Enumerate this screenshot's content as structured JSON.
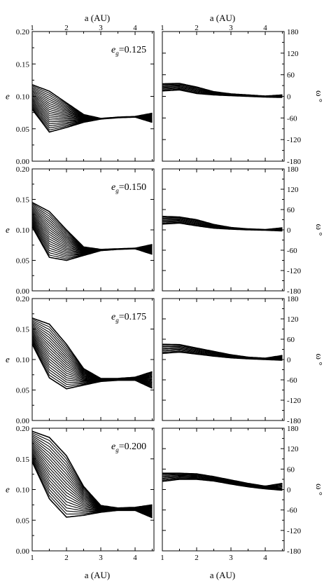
{
  "figure": {
    "top_axis_label": "a (AU)",
    "bottom_axis_label": "a (AU)",
    "left_ylabel": "e",
    "right_ylabel": "ω °",
    "x_ticks": [
      "1",
      "2",
      "3",
      "4"
    ],
    "e_ticks": [
      "0.00",
      "0.05",
      "0.10",
      "0.15",
      "0.20"
    ],
    "omega_ticks": [
      "180",
      "120",
      "60",
      "0",
      "-60",
      "-120",
      "-180"
    ]
  },
  "chart_data": [
    {
      "type": "line",
      "panel": "e vs a",
      "annotation": "eg=0.125",
      "annotation_main": "e",
      "annotation_sub": "g",
      "annotation_value": "=0.125",
      "xlabel": "a (AU)",
      "ylabel": "e",
      "xlim": [
        1,
        4.55
      ],
      "ylim": [
        0,
        0.2
      ],
      "series": [
        {
          "x": [
            1.0,
            1.5,
            2.0,
            2.5,
            3.0,
            3.5,
            4.0,
            4.5
          ],
          "values": [
            0.08,
            0.045,
            0.052,
            0.06,
            0.065,
            0.067,
            0.068,
            0.06
          ]
        },
        {
          "x": [
            1.0,
            1.5,
            2.0,
            2.5,
            3.0,
            3.5,
            4.0,
            4.5
          ],
          "values": [
            0.118,
            0.108,
            0.09,
            0.072,
            0.066,
            0.068,
            0.069,
            0.074
          ]
        }
      ]
    },
    {
      "type": "line",
      "panel": "omega vs a",
      "xlabel": "a (AU)",
      "ylabel": "ω °",
      "xlim": [
        1,
        4.55
      ],
      "ylim": [
        -180,
        180
      ],
      "series": [
        {
          "x": [
            1.0,
            1.5,
            2.0,
            2.5,
            3.0,
            3.5,
            4.0,
            4.5
          ],
          "values": [
            15,
            18,
            8,
            4,
            2,
            0,
            -2,
            -3
          ]
        },
        {
          "x": [
            1.0,
            1.5,
            2.0,
            2.5,
            3.0,
            3.5,
            4.0,
            4.5
          ],
          "values": [
            35,
            36,
            26,
            13,
            7,
            4,
            1,
            4
          ]
        }
      ]
    },
    {
      "type": "line",
      "panel": "e vs a",
      "annotation": "eg=0.150",
      "annotation_main": "e",
      "annotation_sub": "g",
      "annotation_value": "=0.150",
      "xlabel": "a (AU)",
      "ylabel": "e",
      "xlim": [
        1,
        4.55
      ],
      "ylim": [
        0,
        0.2
      ],
      "series": [
        {
          "x": [
            1.0,
            1.5,
            2.0,
            2.5,
            3.0,
            3.5,
            4.0,
            4.5
          ],
          "values": [
            0.105,
            0.055,
            0.05,
            0.058,
            0.066,
            0.068,
            0.069,
            0.06
          ]
        },
        {
          "x": [
            1.0,
            1.5,
            2.0,
            2.5,
            3.0,
            3.5,
            4.0,
            4.5
          ],
          "values": [
            0.145,
            0.13,
            0.1,
            0.072,
            0.068,
            0.069,
            0.07,
            0.076
          ]
        }
      ]
    },
    {
      "type": "line",
      "panel": "omega vs a",
      "xlabel": "a (AU)",
      "ylabel": "ω °",
      "xlim": [
        1,
        4.55
      ],
      "ylim": [
        -180,
        180
      ],
      "series": [
        {
          "x": [
            1.0,
            1.5,
            2.0,
            2.5,
            3.0,
            3.5,
            4.0,
            4.5
          ],
          "values": [
            17,
            20,
            12,
            5,
            2,
            0,
            -1,
            -3
          ]
        },
        {
          "x": [
            1.0,
            1.5,
            2.0,
            2.5,
            3.0,
            3.5,
            4.0,
            4.5
          ],
          "values": [
            40,
            38,
            30,
            16,
            7,
            3,
            1,
            6
          ]
        }
      ]
    },
    {
      "type": "line",
      "panel": "e vs a",
      "annotation": "eg=0.175",
      "annotation_main": "e",
      "annotation_sub": "g",
      "annotation_value": "=0.175",
      "xlabel": "a (AU)",
      "ylabel": "e",
      "xlim": [
        1,
        4.55
      ],
      "ylim": [
        0,
        0.2
      ],
      "series": [
        {
          "x": [
            1.0,
            1.5,
            2.0,
            2.5,
            3.0,
            3.5,
            4.0,
            4.5
          ],
          "values": [
            0.125,
            0.07,
            0.052,
            0.058,
            0.064,
            0.066,
            0.066,
            0.053
          ]
        },
        {
          "x": [
            1.0,
            1.5,
            2.0,
            2.5,
            3.0,
            3.5,
            4.0,
            4.5
          ],
          "values": [
            0.168,
            0.158,
            0.125,
            0.085,
            0.069,
            0.069,
            0.071,
            0.08
          ]
        }
      ]
    },
    {
      "type": "line",
      "panel": "omega vs a",
      "xlabel": "a (AU)",
      "ylabel": "ω °",
      "xlim": [
        1,
        4.55
      ],
      "ylim": [
        -180,
        180
      ],
      "series": [
        {
          "x": [
            1.0,
            1.5,
            2.0,
            2.5,
            3.0,
            3.5,
            4.0,
            4.5
          ],
          "values": [
            18,
            22,
            16,
            10,
            5,
            2,
            0,
            -2
          ]
        },
        {
          "x": [
            1.0,
            1.5,
            2.0,
            2.5,
            3.0,
            3.5,
            4.0,
            4.5
          ],
          "values": [
            45,
            44,
            34,
            24,
            14,
            7,
            4,
            12
          ]
        }
      ]
    },
    {
      "type": "line",
      "panel": "e vs a",
      "annotation": "eg=0.200",
      "annotation_main": "e",
      "annotation_sub": "g",
      "annotation_value": "=0.200",
      "xlabel": "a (AU)",
      "ylabel": "e",
      "xlim": [
        1,
        4.55
      ],
      "ylim": [
        0,
        0.2
      ],
      "series": [
        {
          "x": [
            1.0,
            1.5,
            2.0,
            2.5,
            3.0,
            3.5,
            4.0,
            4.5
          ],
          "values": [
            0.145,
            0.085,
            0.055,
            0.058,
            0.063,
            0.066,
            0.066,
            0.054
          ]
        },
        {
          "x": [
            1.0,
            1.5,
            2.0,
            2.5,
            3.0,
            3.5,
            4.0,
            4.5
          ],
          "values": [
            0.195,
            0.185,
            0.155,
            0.105,
            0.074,
            0.07,
            0.071,
            0.075
          ]
        }
      ]
    },
    {
      "type": "line",
      "panel": "omega vs a",
      "xlabel": "a (AU)",
      "ylabel": "ω °",
      "xlim": [
        1,
        4.55
      ],
      "ylim": [
        -180,
        180
      ],
      "series": [
        {
          "x": [
            1.0,
            1.5,
            2.0,
            2.5,
            3.0,
            3.5,
            4.0,
            4.5
          ],
          "values": [
            24,
            30,
            30,
            25,
            16,
            8,
            2,
            -2
          ]
        },
        {
          "x": [
            1.0,
            1.5,
            2.0,
            2.5,
            3.0,
            3.5,
            4.0,
            4.5
          ],
          "values": [
            48,
            48,
            46,
            38,
            28,
            18,
            10,
            18
          ]
        }
      ]
    }
  ]
}
